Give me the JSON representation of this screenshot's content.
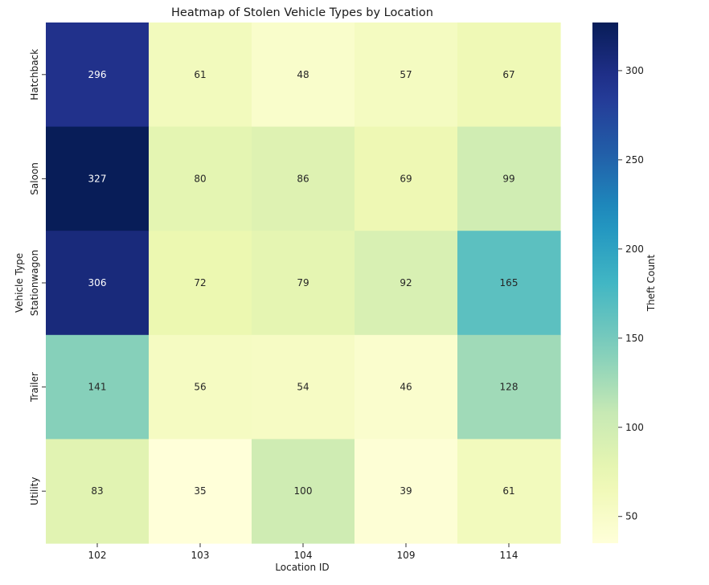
{
  "chart_data": {
    "type": "heatmap",
    "title": "Heatmap of Stolen Vehicle Types by Location",
    "xlabel": "Location ID",
    "ylabel": "Vehicle Type",
    "x_categories": [
      "102",
      "103",
      "104",
      "109",
      "114"
    ],
    "y_categories": [
      "Hatchback",
      "Saloon",
      "Stationwagon",
      "Trailer",
      "Utility"
    ],
    "values": [
      [
        296,
        61,
        48,
        57,
        67
      ],
      [
        327,
        80,
        86,
        69,
        99
      ],
      [
        306,
        72,
        79,
        92,
        165
      ],
      [
        141,
        56,
        54,
        46,
        128
      ],
      [
        83,
        35,
        100,
        39,
        61
      ]
    ],
    "colormap": "YlGnBu",
    "vmin": 35,
    "vmax": 327,
    "colorbar": {
      "label": "Theft Count",
      "ticks": [
        50,
        100,
        150,
        200,
        250,
        300
      ]
    }
  }
}
